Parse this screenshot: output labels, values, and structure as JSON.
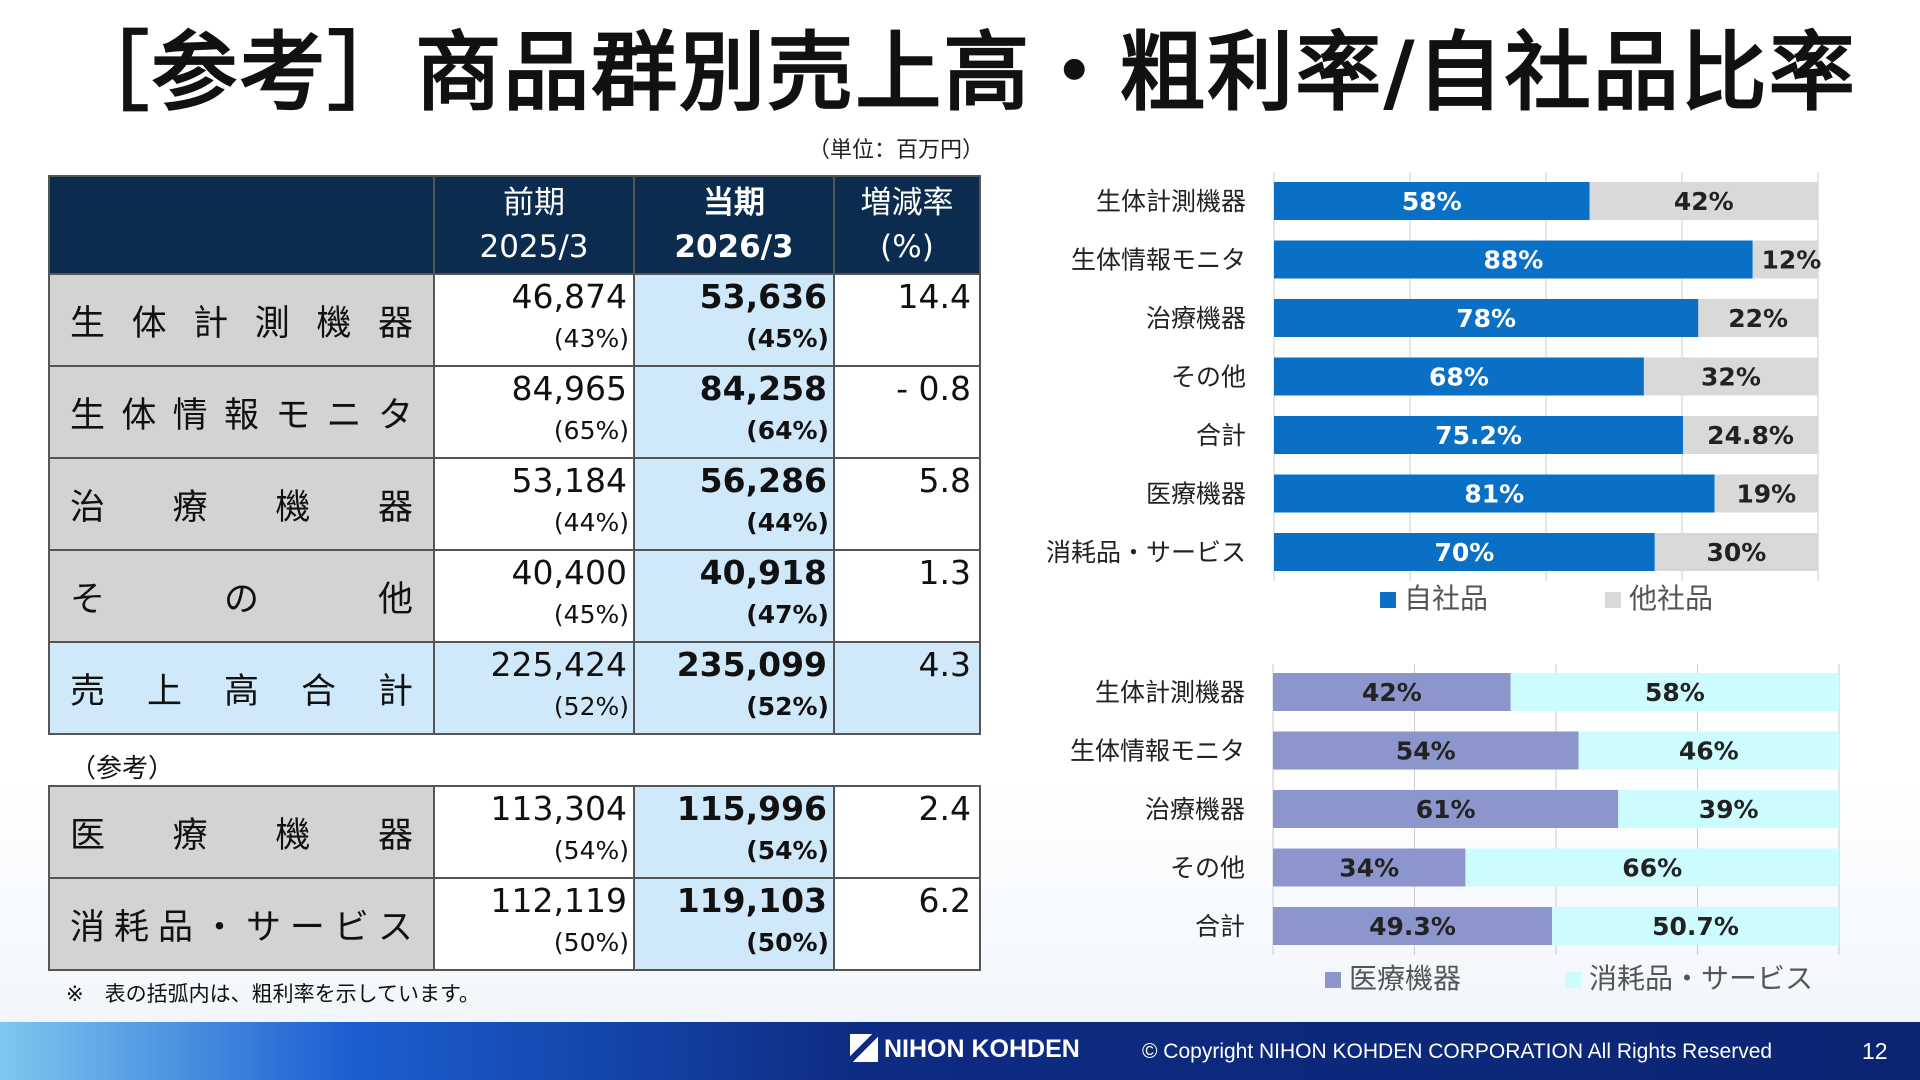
{
  "title": "［参考］商品群別売上高・粗利率/自社品比率",
  "unit_note": "（単位：百万円）",
  "table": {
    "headers": [
      {
        "top": "前期",
        "bottom": "2025/3"
      },
      {
        "top": "当期",
        "bottom": "2026/3"
      },
      {
        "top": "増減率",
        "bottom": "(%)"
      }
    ],
    "rows": [
      {
        "label": "生体計測機器",
        "prev": "46,874",
        "prev_pct": "(43%)",
        "cur": "53,636",
        "cur_pct": "(45%)",
        "change": "14.4"
      },
      {
        "label": "生体情報モニタ",
        "prev": "84,965",
        "prev_pct": "(65%)",
        "cur": "84,258",
        "cur_pct": "(64%)",
        "change": "- 0.8"
      },
      {
        "label": "治療機器",
        "prev": "53,184",
        "prev_pct": "(44%)",
        "cur": "56,286",
        "cur_pct": "(44%)",
        "change": "5.8"
      },
      {
        "label": "その他",
        "prev": "40,400",
        "prev_pct": "(45%)",
        "cur": "40,918",
        "cur_pct": "(47%)",
        "change": "1.3"
      },
      {
        "label": "売上高合計",
        "prev": "225,424",
        "prev_pct": "(52%)",
        "cur": "235,099",
        "cur_pct": "(52%)",
        "change": "4.3"
      }
    ],
    "reference_label": "（参考）",
    "reference_rows": [
      {
        "label": "医療機器",
        "prev": "113,304",
        "prev_pct": "(54%)",
        "cur": "115,996",
        "cur_pct": "(54%)",
        "change": "2.4"
      },
      {
        "label": "消耗品・サービス",
        "prev": "112,119",
        "prev_pct": "(50%)",
        "cur": "119,103",
        "cur_pct": "(50%)",
        "change": "6.2"
      }
    ],
    "footnote": "※　表の括弧内は、粗利率を示しています。"
  },
  "chart_data": [
    {
      "type": "bar",
      "stacked": true,
      "orientation": "horizontal",
      "percent": true,
      "categories": [
        "生体計測機器",
        "生体情報モニタ",
        "治療機器",
        "その他",
        "合計",
        "医療機器",
        "消耗品・サービス"
      ],
      "series": [
        {
          "name": "自社品",
          "values": [
            58,
            88,
            78,
            68,
            75.2,
            81,
            70
          ],
          "labels": [
            "58%",
            "88%",
            "78%",
            "68%",
            "75.2%",
            "81%",
            "70%"
          ],
          "color": "#0a70c6"
        },
        {
          "name": "他社品",
          "values": [
            42,
            12,
            22,
            32,
            24.8,
            19,
            30
          ],
          "labels": [
            "42%",
            "12%",
            "22%",
            "32%",
            "24.8%",
            "19%",
            "30%"
          ],
          "color": "#d9d9d9"
        }
      ],
      "xlim": [
        0,
        100
      ],
      "grid": true,
      "legend": "bottom"
    },
    {
      "type": "bar",
      "stacked": true,
      "orientation": "horizontal",
      "percent": true,
      "categories": [
        "生体計測機器",
        "生体情報モニタ",
        "治療機器",
        "その他",
        "合計"
      ],
      "series": [
        {
          "name": "医療機器",
          "values": [
            42,
            54,
            61,
            34,
            49.3
          ],
          "labels": [
            "42%",
            "54%",
            "61%",
            "34%",
            "49.3%"
          ],
          "color": "#8c96cc"
        },
        {
          "name": "消耗品・サービス",
          "values": [
            58,
            46,
            39,
            66,
            50.7
          ],
          "labels": [
            "58%",
            "46%",
            "39%",
            "66%",
            "50.7%"
          ],
          "color": "#ccfcfe"
        }
      ],
      "xlim": [
        0,
        100
      ],
      "grid": true,
      "legend": "bottom"
    }
  ],
  "footer": {
    "logo_text": "NIHON KOHDEN",
    "copyright": "© Copyright  NIHON KOHDEN CORPORATION  All Rights Reserved",
    "page_number": "12"
  }
}
